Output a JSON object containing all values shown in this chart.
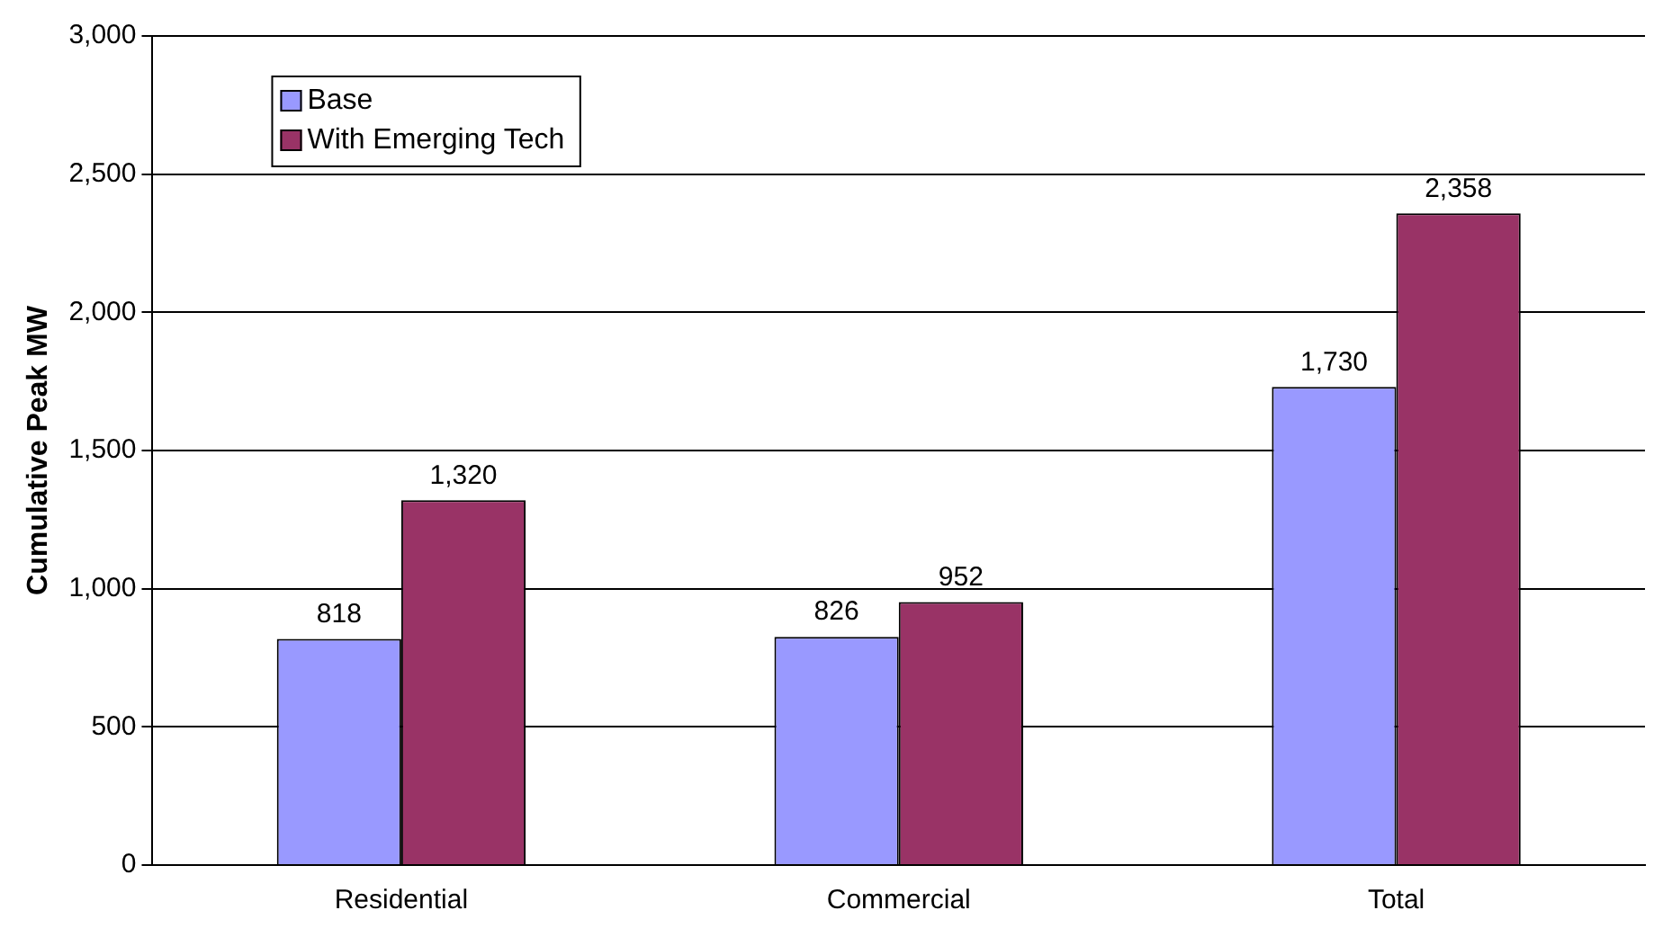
{
  "chart_data": {
    "type": "bar",
    "ylabel": "Cumulative Peak MW",
    "categories": [
      "Residential",
      "Commercial",
      "Total"
    ],
    "series": [
      {
        "name": "Base",
        "color": "#9999ff",
        "values": [
          818,
          826,
          1730
        ],
        "value_labels": [
          "818",
          "826",
          "1,730"
        ]
      },
      {
        "name": "With Emerging Tech",
        "color": "#993366",
        "values": [
          1320,
          952,
          2358
        ],
        "value_labels": [
          "1,320",
          "952",
          "2,358"
        ]
      }
    ],
    "ylim": [
      0,
      3000
    ],
    "yticks": [
      0,
      {
        "value": 500,
        "label": "500"
      },
      {
        "value": 1000,
        "label": "1,000"
      },
      {
        "value": 1500,
        "label": "1,500"
      },
      {
        "value": 2000,
        "label": "2,000"
      },
      {
        "value": 2500,
        "label": "2,500"
      },
      {
        "value": 3000,
        "label": "3,000"
      }
    ],
    "grid": "y",
    "legend": "top left"
  }
}
